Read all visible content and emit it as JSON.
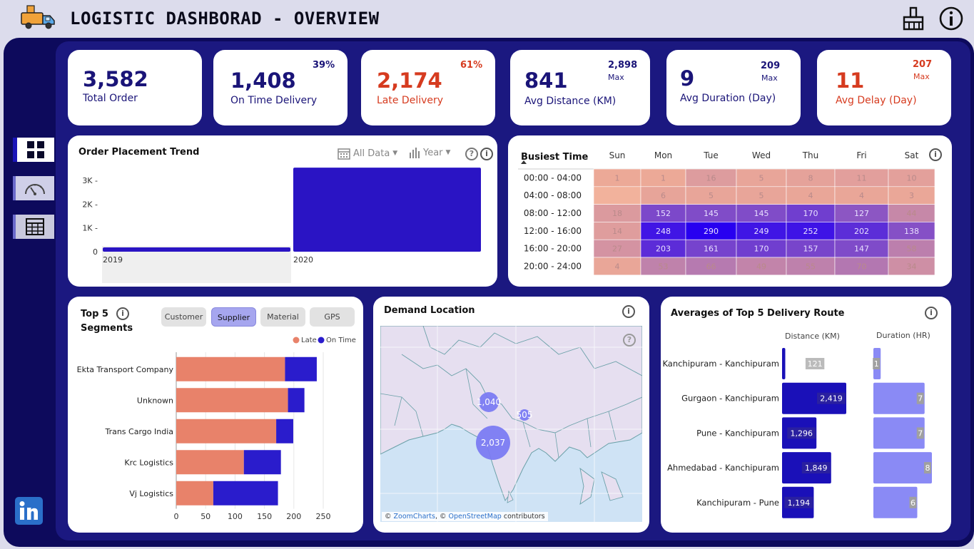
{
  "header": {
    "title": "LOGISTIC DASHBORAD - OVERVIEW"
  },
  "kpis": {
    "total_order": {
      "value": "3,582",
      "label": "Total Order"
    },
    "on_time": {
      "value": "1,408",
      "label": "On Time Delivery",
      "pct": "39%"
    },
    "late": {
      "value": "2,174",
      "label": "Late Delivery",
      "pct": "61%"
    },
    "avg_distance": {
      "value": "841",
      "label": "Avg Distance (KM)",
      "max": "2,898",
      "max_label": "Max"
    },
    "avg_duration": {
      "value": "9",
      "label": "Avg Duration (Day)",
      "max": "209",
      "max_label": "Max"
    },
    "avg_delay": {
      "value": "11",
      "label": "Avg Delay (Day)",
      "max": "207",
      "max_label": "Max"
    }
  },
  "trend": {
    "title": "Order Placement Trend",
    "filter_data": "All Data",
    "filter_period": "Year",
    "help": "?"
  },
  "heat": {
    "title": "Busiest Time"
  },
  "segments": {
    "title_line1": "Top 5",
    "title_line2": "Segments",
    "tabs": [
      "Customer",
      "Supplier",
      "Material",
      "GPS"
    ],
    "legend_late": "Late",
    "legend_ontime": "On Time"
  },
  "demand": {
    "title": "Demand Location",
    "help": "?",
    "attribution_prefix": "© ",
    "attribution_zoom": "ZoomCharts",
    "attribution_sep": ", © ",
    "attribution_osm": "OpenStreetMap",
    "attribution_suffix": " contributors",
    "bubbles": [
      {
        "label": "1,040"
      },
      {
        "label": "505"
      },
      {
        "label": "2,037"
      }
    ]
  },
  "routes": {
    "title": "Averages of Top 5 Delivery Route",
    "col_distance": "Distance (KM)",
    "col_duration": "Duration (HR)"
  },
  "colors": {
    "dark_blue": "#1a14b8",
    "late": "#e8826a",
    "on_time": "#2a1ccc",
    "light_blue": "#8888f5",
    "red": "#d63b1f"
  },
  "chart_data": [
    {
      "type": "bar",
      "title": "Order Placement Trend",
      "categories": [
        "2019",
        "2020"
      ],
      "values": [
        45,
        3537
      ],
      "ylim": [
        0,
        3600
      ],
      "y_ticks": [
        "0",
        "1K",
        "2K",
        "3K"
      ]
    },
    {
      "type": "heatmap",
      "title": "Busiest Time",
      "columns": [
        "Sun",
        "Mon",
        "Tue",
        "Wed",
        "Thu",
        "Fri",
        "Sat"
      ],
      "rows": [
        "00:00 - 04:00",
        "04:00 - 08:00",
        "08:00 - 12:00",
        "12:00 - 16:00",
        "16:00 - 20:00",
        "20:00 - 24:00"
      ],
      "values": [
        [
          1,
          1,
          16,
          5,
          8,
          11,
          10
        ],
        [
          null,
          6,
          5,
          5,
          4,
          4,
          3
        ],
        [
          18,
          152,
          145,
          145,
          170,
          127,
          44
        ],
        [
          14,
          248,
          290,
          249,
          252,
          202,
          138
        ],
        [
          27,
          203,
          161,
          170,
          157,
          147,
          58
        ],
        [
          4,
          53,
          66,
          49,
          55,
          70,
          34
        ]
      ]
    },
    {
      "type": "bar",
      "orientation": "horizontal",
      "stacked": true,
      "categories": [
        "Ekta Transport Company",
        "Unknown",
        "Trans Cargo India",
        "Krc Logistics",
        "Vj Logistics"
      ],
      "series": [
        {
          "name": "Late",
          "values": [
            185,
            190,
            170,
            115,
            63
          ]
        },
        {
          "name": "On Time",
          "values": [
            54,
            28,
            29,
            63,
            110
          ]
        }
      ],
      "xlim": [
        0,
        250
      ],
      "x_ticks": [
        "0",
        "50",
        "100",
        "150",
        "200",
        "250"
      ]
    },
    {
      "type": "bar",
      "orientation": "horizontal",
      "title": "Averages of Top 5 Delivery Route",
      "categories": [
        "Kanchipuram - Kanchipuram",
        "Gurgaon - Kanchipuram",
        "Pune - Kanchipuram",
        "Ahmedabad - Kanchipuram",
        "Kanchipuram - Pune"
      ],
      "series": [
        {
          "name": "Distance (KM)",
          "values": [
            121,
            2419,
            1296,
            1849,
            1194
          ],
          "labels": [
            "121",
            "2,419",
            "1,296",
            "1,849",
            "1,194"
          ]
        },
        {
          "name": "Duration (HR)",
          "values": [
            1,
            7,
            7,
            8,
            6
          ],
          "labels": [
            "1",
            "7",
            "7",
            "8",
            "6"
          ]
        }
      ]
    }
  ]
}
